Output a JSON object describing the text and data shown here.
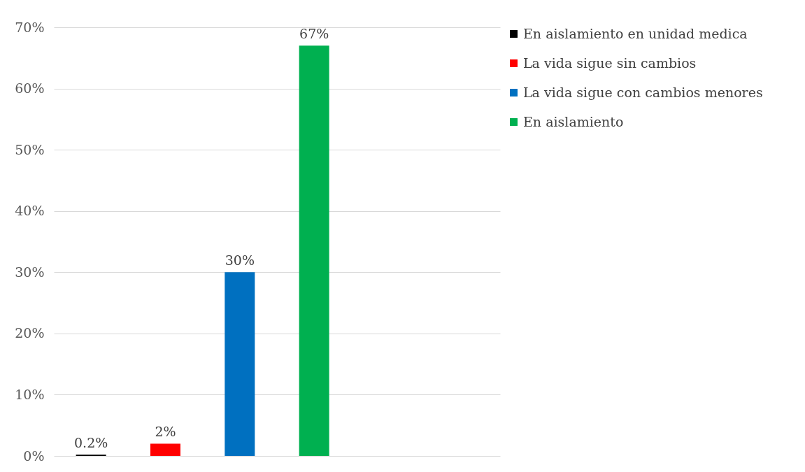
{
  "chart_data": {
    "type": "bar",
    "categories": [
      null,
      null,
      null,
      null,
      null,
      null
    ],
    "series": [
      {
        "name": "En aislamiento en unidad medica",
        "color": "#000000",
        "values": [
          0.2,
          null,
          null,
          null,
          null,
          null
        ],
        "value_labels": [
          "0.2%",
          null,
          null,
          null,
          null,
          null
        ]
      },
      {
        "name": "La vida sigue sin cambios",
        "color": "#ff0000",
        "values": [
          null,
          2,
          null,
          null,
          null,
          null
        ],
        "value_labels": [
          null,
          "2%",
          null,
          null,
          null,
          null
        ]
      },
      {
        "name": "La vida sigue con cambios menores",
        "color": "#0070c0",
        "values": [
          null,
          null,
          30,
          null,
          null,
          null
        ],
        "value_labels": [
          null,
          null,
          "30%",
          null,
          null,
          null
        ]
      },
      {
        "name": "En aislamiento",
        "color": "#00b050",
        "values": [
          null,
          null,
          null,
          67,
          null,
          null
        ],
        "value_labels": [
          null,
          null,
          null,
          "67%",
          null,
          null
        ]
      }
    ],
    "ylim": [
      0,
      70
    ],
    "yticks": [
      {
        "value": 0,
        "label": "0%"
      },
      {
        "value": 10,
        "label": "10%"
      },
      {
        "value": 20,
        "label": "20%"
      },
      {
        "value": 30,
        "label": "30%"
      },
      {
        "value": 40,
        "label": "40%"
      },
      {
        "value": 50,
        "label": "50%"
      },
      {
        "value": 60,
        "label": "60%"
      },
      {
        "value": 70,
        "label": "70%"
      }
    ],
    "grid": "y",
    "legend": "right"
  }
}
